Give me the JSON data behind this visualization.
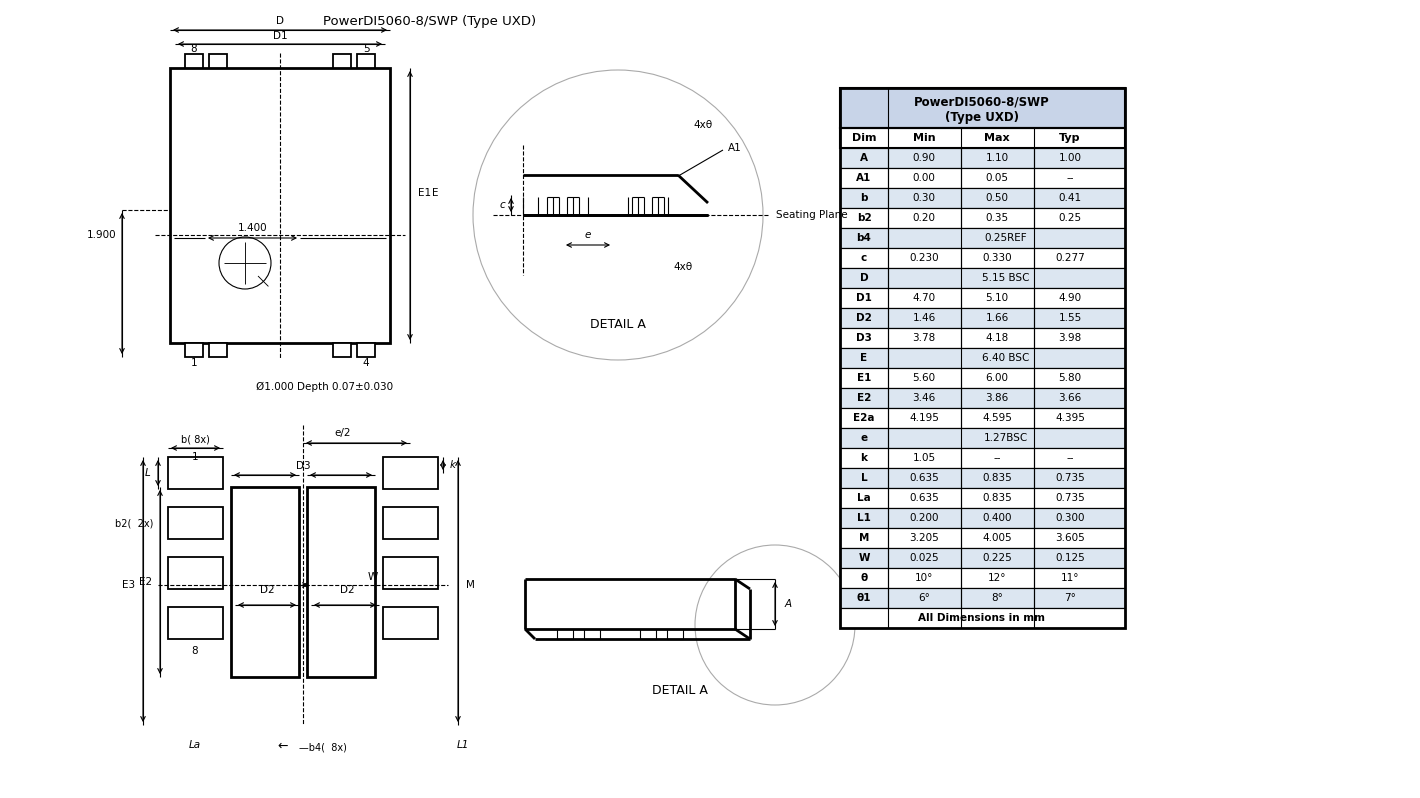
{
  "title": "PowerDI5060-8/SWP (Type UXD)",
  "bg_color": "#ffffff",
  "table_header_line1": "PowerDI5060-8/SWP",
  "table_header_line2": "(Type UXD)",
  "col_headers": [
    "Dim",
    "Min",
    "Max",
    "Typ"
  ],
  "rows": [
    [
      "A",
      "0.90",
      "1.10",
      "1.00"
    ],
    [
      "A1",
      "0.00",
      "0.05",
      "--"
    ],
    [
      "b",
      "0.30",
      "0.50",
      "0.41"
    ],
    [
      "b2",
      "0.20",
      "0.35",
      "0.25"
    ],
    [
      "b4",
      "0.25REF",
      "",
      ""
    ],
    [
      "c",
      "0.230",
      "0.330",
      "0.277"
    ],
    [
      "D",
      "5.15 BSC",
      "",
      ""
    ],
    [
      "D1",
      "4.70",
      "5.10",
      "4.90"
    ],
    [
      "D2",
      "1.46",
      "1.66",
      "1.55"
    ],
    [
      "D3",
      "3.78",
      "4.18",
      "3.98"
    ],
    [
      "E",
      "6.40 BSC",
      "",
      ""
    ],
    [
      "E1",
      "5.60",
      "6.00",
      "5.80"
    ],
    [
      "E2",
      "3.46",
      "3.86",
      "3.66"
    ],
    [
      "E2a",
      "4.195",
      "4.595",
      "4.395"
    ],
    [
      "e",
      "1.27BSC",
      "",
      ""
    ],
    [
      "k",
      "1.05",
      "--",
      "--"
    ],
    [
      "L",
      "0.635",
      "0.835",
      "0.735"
    ],
    [
      "La",
      "0.635",
      "0.835",
      "0.735"
    ],
    [
      "L1",
      "0.200",
      "0.400",
      "0.300"
    ],
    [
      "M",
      "3.205",
      "4.005",
      "3.605"
    ],
    [
      "W",
      "0.025",
      "0.225",
      "0.125"
    ],
    [
      "θ",
      "10°",
      "12°",
      "11°"
    ],
    [
      "θ1",
      "6°",
      "8°",
      "7°"
    ],
    [
      "All Dimensions in mm",
      "",
      "",
      ""
    ]
  ],
  "line_color": "#000000",
  "dim_color": "#2c4a8c",
  "table_header_bg": "#c8d4e8",
  "table_row_bg1": "#dce6f1",
  "table_row_bg2": "#ffffff"
}
